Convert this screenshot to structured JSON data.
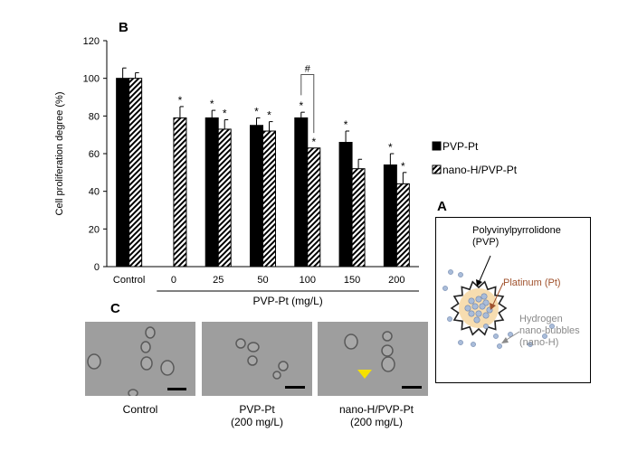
{
  "panel_labels": {
    "chart": "B",
    "diagram": "A",
    "micrographs": "C"
  },
  "chart_data": {
    "type": "bar",
    "categories": [
      "Control",
      "0",
      "25",
      "50",
      "100",
      "150",
      "200"
    ],
    "series": [
      {
        "name": "PVP-Pt",
        "pattern": "solid",
        "values": [
          100,
          null,
          79,
          75,
          79,
          66,
          54
        ],
        "errors": [
          5.5,
          null,
          4,
          4,
          3,
          6,
          6
        ],
        "marks": [
          "",
          "",
          "*",
          "*",
          "*",
          "*",
          "*"
        ]
      },
      {
        "name": "nano-H/PVP-Pt",
        "pattern": "hatched",
        "values": [
          100,
          79,
          73,
          72,
          63,
          52,
          44
        ],
        "errors": [
          3,
          6,
          5,
          5,
          0,
          5,
          6
        ],
        "marks": [
          "",
          "*",
          "*",
          "*",
          "*",
          "",
          "*"
        ]
      }
    ],
    "ylabel": "Cell proliferation degree (%)",
    "xlabel": "PVP-Pt (mg/L)",
    "ylim": [
      0,
      120
    ],
    "yticks": [
      0,
      20,
      40,
      60,
      80,
      100,
      120
    ],
    "significance": {
      "label": "#",
      "category": "100"
    },
    "grid": false,
    "legend": "right",
    "colors": {
      "bar_fill": "#000000",
      "hatch": "#000000",
      "axis": "#000000"
    }
  },
  "diagram": {
    "polymer_label": "Polyvinylpyrrolidone\n(PVP)",
    "platinum_label": "Platinum (Pt)",
    "hydrogen_label": "Hydrogen\nnano-bubbles\n(nano-H)",
    "colors": {
      "core": "#f7ddb0",
      "platinum_text": "#a0522d",
      "hydrogen_text": "#8a8a8a",
      "bubble": "#a9bcd9"
    }
  },
  "micrographs": {
    "captions": [
      "Control",
      "PVP-Pt\n(200 mg/L)",
      "nano-H/PVP-Pt\n(200 mg/L)"
    ],
    "arrow_color": "#f5e000"
  }
}
